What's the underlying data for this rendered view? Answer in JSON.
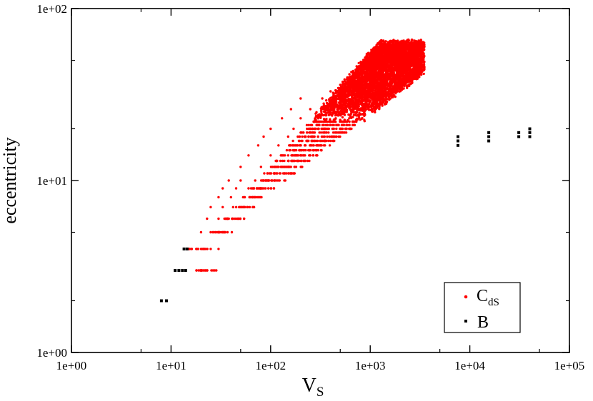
{
  "chart_data": {
    "type": "scatter",
    "title": "",
    "xlabel": {
      "main": "V",
      "sub": "S"
    },
    "ylabel": "eccentricity",
    "x_scale": "log",
    "y_scale": "log",
    "xlim": [
      1,
      100000
    ],
    "ylim": [
      1,
      100
    ],
    "x_ticks": [
      "1e+00",
      "1e+01",
      "1e+02",
      "1e+03",
      "1e+04",
      "1e+05"
    ],
    "y_ticks": [
      "1e+00",
      "1e+01",
      "1e+02"
    ],
    "grid": false,
    "legend": {
      "placement": "bottom-right",
      "entries": [
        {
          "main": "C",
          "sub": "dS"
        },
        {
          "main": "B",
          "sub": ""
        }
      ]
    },
    "series": [
      {
        "name": "CdS",
        "color": "#ff0000",
        "marker": "circle",
        "cluster": {
          "min_eccentricity": 3,
          "max_eccentricity": 63,
          "approx_vs_range": [
            18,
            3500
          ]
        },
        "points": [
          [
            18,
            3
          ],
          [
            20,
            3
          ],
          [
            22,
            3
          ],
          [
            16,
            4
          ],
          [
            20,
            4
          ],
          [
            25,
            4
          ],
          [
            30,
            4
          ],
          [
            20,
            5
          ],
          [
            25,
            5
          ],
          [
            30,
            5
          ],
          [
            35,
            5
          ],
          [
            23,
            6
          ],
          [
            30,
            6
          ],
          [
            38,
            6
          ],
          [
            45,
            6
          ],
          [
            25,
            7
          ],
          [
            33,
            7
          ],
          [
            42,
            7
          ],
          [
            55,
            7
          ],
          [
            30,
            8
          ],
          [
            40,
            8
          ],
          [
            55,
            8
          ],
          [
            70,
            8
          ],
          [
            33,
            9
          ],
          [
            45,
            9
          ],
          [
            60,
            9
          ],
          [
            80,
            9
          ],
          [
            38,
            10
          ],
          [
            50,
            10
          ],
          [
            70,
            10
          ],
          [
            90,
            10
          ],
          [
            110,
            10
          ],
          [
            50,
            12
          ],
          [
            80,
            12
          ],
          [
            120,
            12
          ],
          [
            150,
            12
          ],
          [
            60,
            14
          ],
          [
            100,
            14
          ],
          [
            150,
            14
          ],
          [
            200,
            14
          ],
          [
            75,
            16
          ],
          [
            120,
            16
          ],
          [
            180,
            16
          ],
          [
            250,
            16
          ],
          [
            85,
            18
          ],
          [
            150,
            18
          ],
          [
            220,
            18
          ],
          [
            300,
            18
          ],
          [
            100,
            20
          ],
          [
            170,
            20
          ],
          [
            250,
            20
          ],
          [
            350,
            20
          ],
          [
            130,
            23
          ],
          [
            200,
            23
          ],
          [
            300,
            23
          ],
          [
            450,
            23
          ],
          [
            160,
            26
          ],
          [
            250,
            26
          ],
          [
            380,
            26
          ],
          [
            550,
            26
          ],
          [
            200,
            30
          ],
          [
            330,
            30
          ],
          [
            500,
            30
          ],
          [
            700,
            30
          ],
          [
            900,
            30
          ],
          [
            400,
            33
          ],
          [
            600,
            33
          ],
          [
            900,
            33
          ],
          [
            1200,
            33
          ],
          [
            500,
            36
          ],
          [
            800,
            36
          ],
          [
            1100,
            36
          ],
          [
            1500,
            36
          ],
          [
            700,
            40
          ],
          [
            1000,
            40
          ],
          [
            1500,
            40
          ],
          [
            2000,
            40
          ],
          [
            2500,
            40
          ],
          [
            900,
            45
          ],
          [
            1300,
            45
          ],
          [
            1800,
            45
          ],
          [
            2400,
            45
          ],
          [
            3000,
            45
          ],
          [
            1200,
            50
          ],
          [
            1700,
            50
          ],
          [
            2300,
            50
          ],
          [
            3000,
            50
          ],
          [
            1600,
            55
          ],
          [
            2200,
            55
          ],
          [
            2900,
            55
          ],
          [
            3400,
            55
          ],
          [
            2000,
            60
          ],
          [
            2600,
            60
          ],
          [
            3000,
            60
          ],
          [
            2500,
            63
          ]
        ]
      },
      {
        "name": "B",
        "color": "#000000",
        "marker": "square",
        "points": [
          [
            8,
            2
          ],
          [
            9,
            2
          ],
          [
            11,
            3
          ],
          [
            12,
            3
          ],
          [
            13,
            3
          ],
          [
            14,
            3
          ],
          [
            13.5,
            4
          ],
          [
            14.5,
            4
          ],
          [
            7600,
            16
          ],
          [
            7600,
            17
          ],
          [
            7600,
            18
          ],
          [
            15500,
            17
          ],
          [
            15500,
            18
          ],
          [
            15500,
            19
          ],
          [
            31000,
            18
          ],
          [
            31000,
            19
          ],
          [
            40000,
            18
          ],
          [
            40000,
            19
          ],
          [
            40000,
            20
          ]
        ]
      }
    ]
  }
}
